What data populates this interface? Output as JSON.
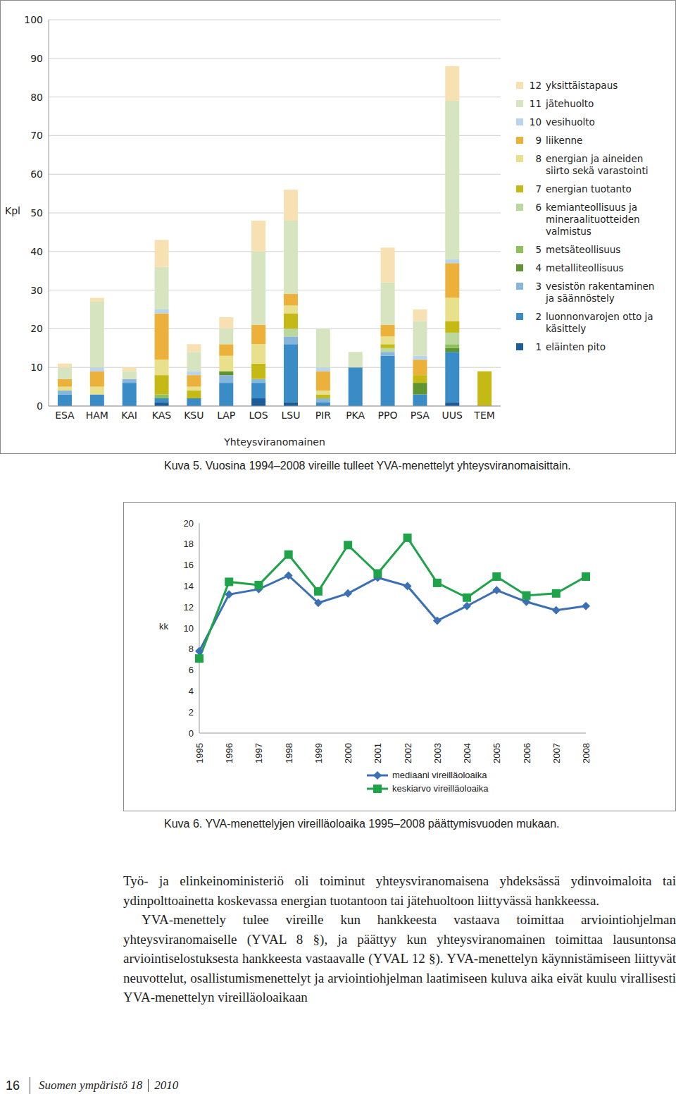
{
  "chart_data": [
    {
      "type": "bar",
      "stacked": true,
      "x_label": "Yhteysviranomainen",
      "y_label": "Kpl",
      "categories": [
        "ESA",
        "HAM",
        "KAI",
        "KAS",
        "KSU",
        "LAP",
        "LOS",
        "LSU",
        "PIR",
        "PKA",
        "PPO",
        "PSA",
        "UUS",
        "TEM"
      ],
      "ylim": [
        0,
        100
      ],
      "yticks": [
        0,
        10,
        20,
        30,
        40,
        50,
        60,
        70,
        80,
        90,
        100
      ],
      "grid": true,
      "legend": "right",
      "series": [
        {
          "name": "1 eläinten pito",
          "color": "#1b5d9b",
          "values": [
            0,
            0,
            0,
            1,
            0,
            0,
            2,
            1,
            0,
            0,
            0,
            0,
            1,
            0
          ]
        },
        {
          "name": "2 luonnonvarojen otto ja käsittely",
          "color": "#3a8cc7",
          "values": [
            3,
            3,
            6,
            1,
            2,
            6,
            4,
            15,
            1,
            10,
            13,
            3,
            13,
            0
          ]
        },
        {
          "name": "3 vesistön rakentaminen ja säännöstely",
          "color": "#86b6dc",
          "values": [
            1,
            0,
            1,
            0,
            0,
            2,
            1,
            2,
            1,
            0,
            1,
            0,
            0,
            0
          ]
        },
        {
          "name": "4 metalliteollisuus",
          "color": "#5e952f",
          "values": [
            0,
            0,
            0,
            0,
            0,
            1,
            0,
            0,
            0,
            0,
            0,
            3,
            1,
            0
          ]
        },
        {
          "name": "5 metsäteollisuus",
          "color": "#8ec05c",
          "values": [
            0,
            0,
            0,
            1,
            0,
            0,
            0,
            0,
            0,
            0,
            0,
            0,
            1,
            0
          ]
        },
        {
          "name": "6 kemianteollisuus ja mineraalituotteiden valmistus",
          "color": "#bad79c",
          "values": [
            0,
            0,
            0,
            0,
            0,
            0,
            0,
            2,
            0,
            0,
            1,
            0,
            3,
            0
          ]
        },
        {
          "name": "7 energian tuotanto",
          "color": "#c5b915",
          "values": [
            0,
            0,
            0,
            5,
            2,
            0,
            4,
            4,
            1,
            0,
            1,
            2,
            3,
            9
          ]
        },
        {
          "name": "8 energian ja aineiden siirto sekä varastointi",
          "color": "#e9e08c",
          "values": [
            1,
            2,
            0,
            4,
            1,
            4,
            5,
            2,
            1,
            0,
            2,
            0,
            6,
            0
          ]
        },
        {
          "name": "9 liikenne",
          "color": "#ebb13a",
          "values": [
            2,
            4,
            0,
            12,
            3,
            3,
            5,
            3,
            5,
            0,
            3,
            4,
            9,
            0
          ]
        },
        {
          "name": "10 vesihuolto",
          "color": "#b9d5ed",
          "values": [
            0,
            1,
            0,
            1,
            1,
            0,
            0,
            0,
            1,
            0,
            0,
            1,
            1,
            0
          ]
        },
        {
          "name": "11 jätehuolto",
          "color": "#d6e5bf",
          "values": [
            3,
            17,
            2,
            11,
            5,
            4,
            19,
            19,
            10,
            4,
            11,
            9,
            41,
            0
          ]
        },
        {
          "name": "12 yksittäistapaus",
          "color": "#f7e0b2",
          "values": [
            1,
            1,
            1,
            7,
            2,
            3,
            8,
            8,
            0,
            0,
            9,
            3,
            9,
            0
          ]
        }
      ]
    },
    {
      "type": "line",
      "y_label": "kk",
      "categories": [
        "1995",
        "1996",
        "1997",
        "1998",
        "1999",
        "2000",
        "2001",
        "2002",
        "2003",
        "2004",
        "2005",
        "2006",
        "2007",
        "2008"
      ],
      "ylim": [
        0,
        20
      ],
      "yticks": [
        0,
        2,
        4,
        6,
        8,
        10,
        12,
        14,
        16,
        18,
        20
      ],
      "grid": false,
      "legend": "bottom",
      "series": [
        {
          "name": "mediaani vireilläoloaika",
          "color": "#3c70b2",
          "marker": "diamond",
          "values": [
            7.8,
            13.2,
            13.7,
            15.0,
            12.4,
            13.3,
            14.8,
            14.0,
            10.7,
            12.1,
            13.6,
            12.5,
            11.7,
            12.1
          ]
        },
        {
          "name": "keskiarvo vireilläoloaika",
          "color": "#1fa34a",
          "marker": "square",
          "values": [
            7.1,
            14.4,
            14.1,
            17.0,
            13.5,
            17.9,
            15.2,
            18.6,
            14.3,
            12.9,
            14.9,
            13.1,
            13.3,
            14.9
          ]
        }
      ]
    }
  ],
  "document": {
    "captions": [
      "Kuva 5. Vuosina 1994–2008 vireille tulleet YVA-menettelyt yhteysviranomaisittain.",
      "Kuva 6. YVA-menettelyjen vireilläoloaika 1995–2008 päättymisvuoden mukaan."
    ],
    "paragraphs": [
      "Työ- ja elinkeinoministeriö oli toiminut yhteysviranomaisena yhdeksässä ydinvoimaloita tai ydinpolttoainetta koskevassa energian tuotantoon tai jätehuoltoon liittyvässä hankkeessa.",
      "YVA-menettely tulee vireille kun hankkeesta vastaava toimittaa arviointiohjelman yhteysviranomaiselle (YVAL 8 §), ja päättyy kun yhteysviranomainen toimittaa lausuntonsa arviointiselostuksesta hankkeesta vastaavalle (YVAL 12 §). YVA-menettelyn käynnistämiseen liittyvät neuvottelut, osallistumismenettelyt ja arviointiohjelman laatimiseen kuluva aika eivät kuulu virallisesti YVA-menettelyn vireilläoloaikaan"
    ],
    "footer": {
      "page": "16",
      "publication": "Suomen ympäristö 18",
      "year": "2010"
    }
  }
}
